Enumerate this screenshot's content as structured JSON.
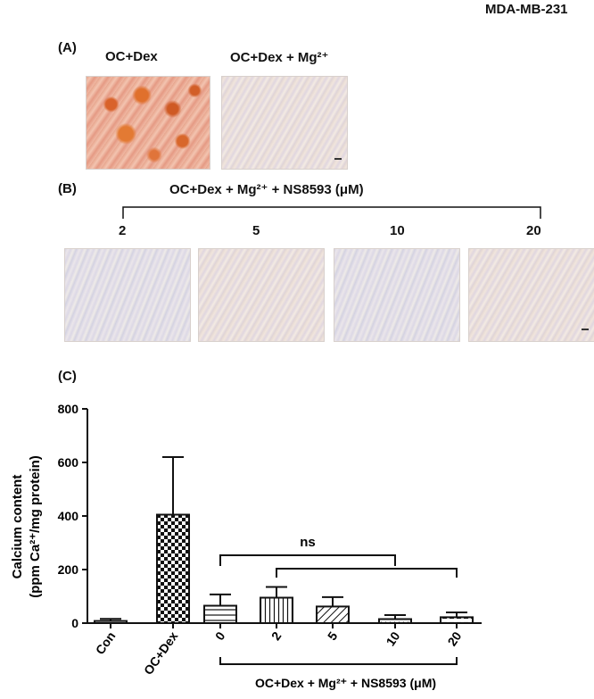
{
  "header": {
    "cell_line": "MDA-MB-231"
  },
  "panel_a": {
    "label": "(A)",
    "images": [
      {
        "caption": "OC+Dex"
      },
      {
        "caption": "OC+Dex + Mg²⁺"
      }
    ]
  },
  "panel_b": {
    "label": "(B)",
    "treatment_label": "OC+Dex + Mg²⁺ + NS8593 (μM)",
    "concentrations": [
      "2",
      "5",
      "10",
      "20"
    ]
  },
  "panel_c": {
    "label": "(C)"
  },
  "chart_data": {
    "type": "bar",
    "title": "",
    "ylabel_line1": "Calcium content",
    "ylabel_line2": "(ppm Ca²⁺/mg protein)",
    "ylim": [
      0,
      800
    ],
    "yticks": [
      0,
      200,
      400,
      600,
      800
    ],
    "categories": [
      "Con",
      "OC+Dex",
      "0",
      "2",
      "5",
      "10",
      "20"
    ],
    "values": [
      8,
      405,
      65,
      95,
      62,
      15,
      22
    ],
    "errors": [
      8,
      215,
      42,
      40,
      35,
      15,
      18
    ],
    "patterns": [
      "none",
      "checker",
      "hlines",
      "vlines",
      "diag",
      "dots",
      "hdash"
    ],
    "significance_label": "ns",
    "group_label": "OC+Dex + Mg²⁺ + NS8593 (μM)"
  }
}
